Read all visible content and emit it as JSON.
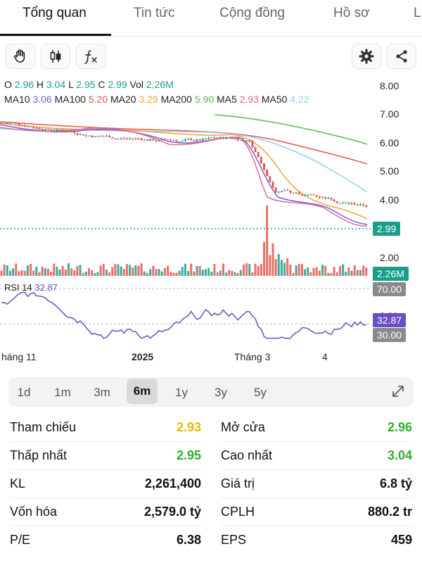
{
  "tabs": [
    {
      "label": "Tổng quan",
      "active": true
    },
    {
      "label": "Tin tức",
      "active": false
    },
    {
      "label": "Cộng đồng",
      "active": false
    },
    {
      "label": "Hồ sơ",
      "active": false
    },
    {
      "label": "L",
      "active": false
    }
  ],
  "toolbar": {
    "icons": [
      "hand-icon",
      "candlestick-icon",
      "function-icon",
      "settings-icon",
      "share-icon"
    ],
    "fx_label": "fx"
  },
  "ohlc": {
    "o_label": "O",
    "o": "2.96",
    "h_label": "H",
    "h": "3.04",
    "l_label": "L",
    "l": "2.95",
    "c_label": "C",
    "c": "2.99",
    "vol_label": "Vol",
    "vol": "2,26M"
  },
  "ma": [
    {
      "label": "MA10",
      "value": "3.06",
      "color": "#7b5bd6"
    },
    {
      "label": "MA100",
      "value": "5.20",
      "color": "#e8564c"
    },
    {
      "label": "MA20",
      "value": "3.29",
      "color": "#f0a33a"
    },
    {
      "label": "MA200",
      "value": "5.90",
      "color": "#5bb84a"
    },
    {
      "label": "MA5",
      "value": "2.93",
      "color": "#e0679a"
    },
    {
      "label": "MA50",
      "value": "4.22",
      "color": "#8fd0f0"
    }
  ],
  "price_axis": [
    "8.00",
    "7.00",
    "6.00",
    "5.00",
    "4.00",
    "2.00"
  ],
  "price_tag": {
    "value": "2.99",
    "color": "#1a9e8c"
  },
  "volume_tag": {
    "value": "2.26M",
    "color": "#1a9e8c"
  },
  "rsi": {
    "label": "RSI 14",
    "value": "32.87",
    "value_color": "#6a4fc4",
    "level_upper": "70.00",
    "level_lower": "30.00",
    "tag_gray": "#8a8a8a",
    "partial_tick": "0.00"
  },
  "time_axis": [
    "háng 11",
    "2025",
    "Tháng 3",
    "4"
  ],
  "periods": [
    {
      "label": "1d",
      "active": false
    },
    {
      "label": "1m",
      "active": false
    },
    {
      "label": "3m",
      "active": false
    },
    {
      "label": "6m",
      "active": true
    },
    {
      "label": "1y",
      "active": false
    },
    {
      "label": "3y",
      "active": false
    },
    {
      "label": "5y",
      "active": false
    }
  ],
  "stats": {
    "left": [
      {
        "label": "Tham chiếu",
        "value": "2.93",
        "color": "#e6b800"
      },
      {
        "label": "Thấp nhất",
        "value": "2.95",
        "color": "#2fae2f"
      },
      {
        "label": "KL",
        "value": "2,261,400",
        "color": "#111111"
      },
      {
        "label": "Vốn hóa",
        "value": "2,579.0 tỷ",
        "color": "#111111"
      },
      {
        "label": "P/E",
        "value": "6.38",
        "color": "#111111"
      }
    ],
    "right": [
      {
        "label": "Mở cửa",
        "value": "2.96",
        "color": "#2fae2f"
      },
      {
        "label": "Cao nhất",
        "value": "3.04",
        "color": "#2fae2f"
      },
      {
        "label": "Giá trị",
        "value": "6.8 tỷ",
        "color": "#111111"
      },
      {
        "label": "CPLH",
        "value": "880.2 tr",
        "color": "#111111"
      },
      {
        "label": "EPS",
        "value": "459",
        "color": "#111111"
      }
    ]
  },
  "colors": {
    "up": "#1a9e8c",
    "down": "#e8564c",
    "accent": "#111111"
  }
}
